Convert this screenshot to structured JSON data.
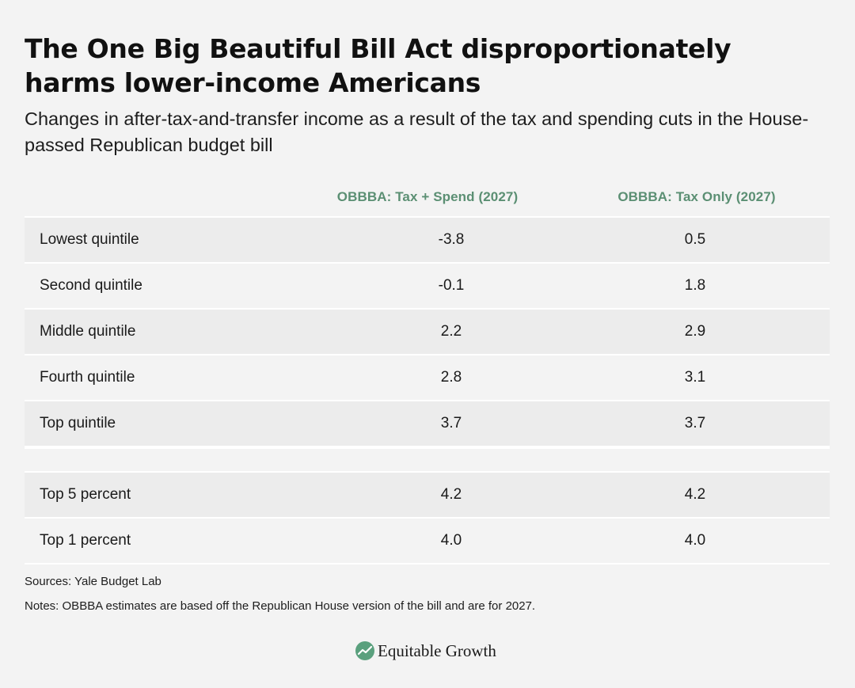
{
  "title": "The One Big Beautiful Bill Act disproportionately harms lower-income Americans",
  "subtitle": "Changes in after-tax-and-transfer income as a result of the tax and spending cuts in the House-passed Republican budget bill",
  "chart_data": {
    "type": "table",
    "columns": [
      "OBBBA: Tax + Spend (2027)",
      "OBBBA: Tax Only (2027)"
    ],
    "rows": [
      {
        "label": "Lowest quintile",
        "values": [
          "-3.8",
          "0.5"
        ]
      },
      {
        "label": "Second quintile",
        "values": [
          "-0.1",
          "1.8"
        ]
      },
      {
        "label": "Middle quintile",
        "values": [
          "2.2",
          "2.9"
        ]
      },
      {
        "label": "Fourth quintile",
        "values": [
          "2.8",
          "3.1"
        ]
      },
      {
        "label": "Top quintile",
        "values": [
          "3.7",
          "3.7"
        ]
      }
    ],
    "rows_top": [
      {
        "label": "Top 5 percent",
        "values": [
          "4.2",
          "4.2"
        ]
      },
      {
        "label": "Top 1 percent",
        "values": [
          "4.0",
          "4.0"
        ]
      }
    ],
    "header_color": "#5b8f73"
  },
  "footer": {
    "sources": "Sources: Yale Budget Lab",
    "notes": "Notes: OBBBA estimates are based off the Republican House version of the bill and are for 2027."
  },
  "brand": {
    "name": "Equitable Growth",
    "icon": "trend-line-icon",
    "color": "#5aa07d"
  }
}
